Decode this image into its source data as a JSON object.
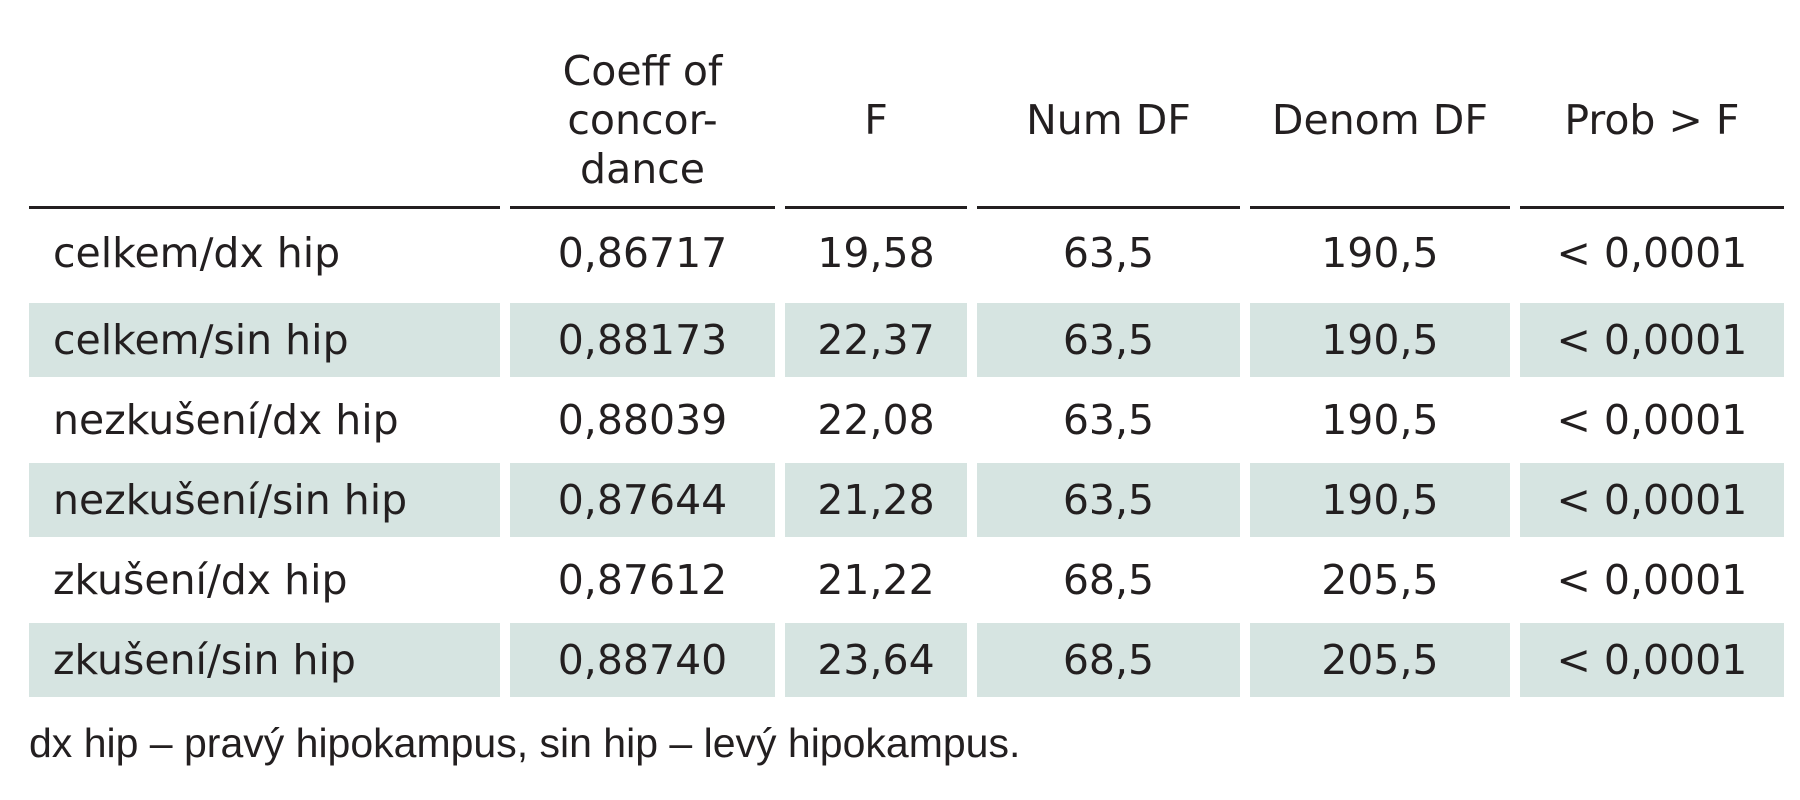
{
  "table": {
    "headers": [
      "",
      [
        "Coeff of",
        "concor-",
        "dance"
      ],
      "F",
      "Num DF",
      "Denom DF",
      "Prob > F"
    ],
    "rows": [
      [
        "celkem/dx hip",
        "0,86717",
        "19,58",
        "63,5",
        "190,5",
        "< 0,0001"
      ],
      [
        "celkem/sin hip",
        "0,88173",
        "22,37",
        "63,5",
        "190,5",
        "< 0,0001"
      ],
      [
        "nezkušení/dx hip",
        "0,88039",
        "22,08",
        "63,5",
        "190,5",
        "< 0,0001"
      ],
      [
        "nezkušení/sin hip",
        "0,87644",
        "21,28",
        "63,5",
        "190,5",
        "< 0,0001"
      ],
      [
        "zkušení/dx hip",
        "0,87612",
        "21,22",
        "68,5",
        "205,5",
        "< 0,0001"
      ],
      [
        "zkušení/sin hip",
        "0,88740",
        "23,64",
        "68,5",
        "205,5",
        "< 0,0001"
      ]
    ],
    "stripe_color": "#d6e4e1"
  },
  "footnote": "dx hip – pravý hipokampus, sin hip – levý hipokampus."
}
